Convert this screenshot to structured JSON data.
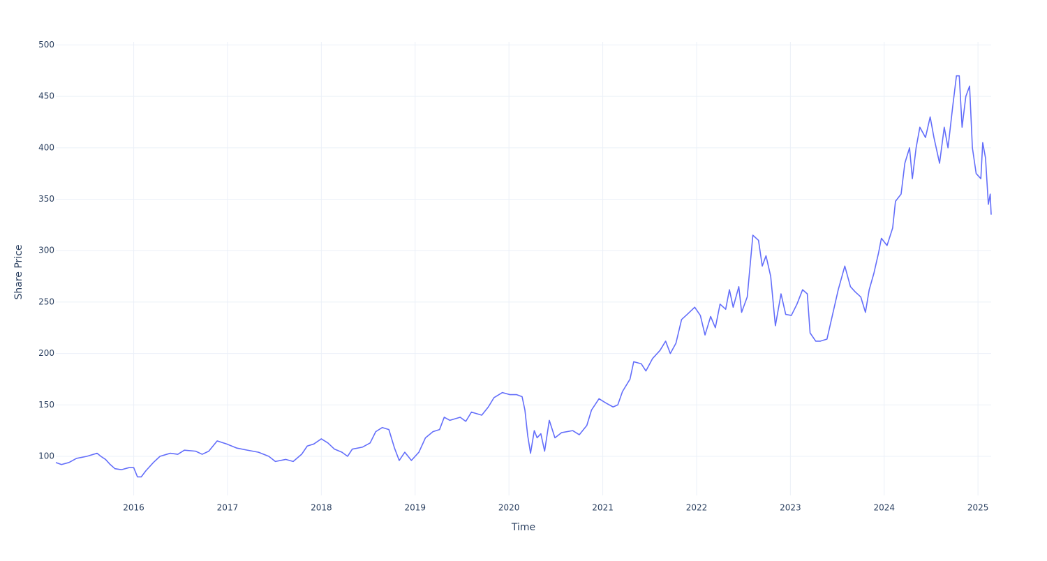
{
  "chart_data": {
    "type": "line",
    "x_label": "Time",
    "y_label": "Share Price",
    "color": "#636efa",
    "grid": true,
    "xlim": [
      2015.17,
      2025.14
    ],
    "xticks": [
      2016,
      2017,
      2018,
      2019,
      2020,
      2021,
      2022,
      2023,
      2024,
      2025
    ],
    "ylim": [
      62,
      503
    ],
    "yticks": [
      100,
      150,
      200,
      250,
      300,
      350,
      400,
      450,
      500
    ],
    "x": [
      2015.17,
      2015.23,
      2015.31,
      2015.39,
      2015.5,
      2015.61,
      2015.65,
      2015.7,
      2015.75,
      2015.8,
      2015.87,
      2015.95,
      2016.0,
      2016.04,
      2016.08,
      2016.13,
      2016.21,
      2016.28,
      2016.39,
      2016.47,
      2016.54,
      2016.66,
      2016.73,
      2016.8,
      2016.89,
      2016.99,
      2017.1,
      2017.21,
      2017.33,
      2017.44,
      2017.51,
      2017.62,
      2017.7,
      2017.79,
      2017.85,
      2017.92,
      2018.0,
      2018.07,
      2018.14,
      2018.22,
      2018.28,
      2018.33,
      2018.44,
      2018.52,
      2018.58,
      2018.65,
      2018.72,
      2018.78,
      2018.83,
      2018.89,
      2018.96,
      2019.04,
      2019.11,
      2019.19,
      2019.26,
      2019.31,
      2019.37,
      2019.48,
      2019.54,
      2019.6,
      2019.71,
      2019.78,
      2019.84,
      2019.93,
      2020.01,
      2020.08,
      2020.14,
      2020.17,
      2020.2,
      2020.23,
      2020.27,
      2020.3,
      2020.34,
      2020.38,
      2020.43,
      2020.49,
      2020.56,
      2020.68,
      2020.75,
      2020.83,
      2020.88,
      2020.96,
      2021.03,
      2021.11,
      2021.16,
      2021.21,
      2021.29,
      2021.33,
      2021.41,
      2021.46,
      2021.53,
      2021.61,
      2021.67,
      2021.72,
      2021.78,
      2021.84,
      2021.9,
      2021.98,
      2022.04,
      2022.09,
      2022.15,
      2022.2,
      2022.25,
      2022.31,
      2022.35,
      2022.39,
      2022.45,
      2022.48,
      2022.54,
      2022.6,
      2022.66,
      2022.7,
      2022.74,
      2022.79,
      2022.84,
      2022.9,
      2022.95,
      2023.01,
      2023.07,
      2023.13,
      2023.18,
      2023.21,
      2023.27,
      2023.32,
      2023.39,
      2023.45,
      2023.51,
      2023.58,
      2023.64,
      2023.69,
      2023.75,
      2023.8,
      2023.84,
      2023.89,
      2023.94,
      2023.97,
      2024.03,
      2024.09,
      2024.12,
      2024.18,
      2024.22,
      2024.27,
      2024.3,
      2024.34,
      2024.38,
      2024.44,
      2024.49,
      2024.53,
      2024.59,
      2024.64,
      2024.68,
      2024.73,
      2024.77,
      2024.8,
      2024.83,
      2024.87,
      2024.91,
      2024.94,
      2024.98,
      2025.03,
      2025.05,
      2025.08,
      2025.11,
      2025.13,
      2025.14
    ],
    "values": [
      94,
      92,
      94,
      98,
      100,
      103,
      100,
      97,
      92,
      88,
      87,
      89,
      89,
      80,
      80,
      86,
      94,
      100,
      103,
      102,
      106,
      105,
      102,
      105,
      115,
      112,
      108,
      106,
      104,
      100,
      95,
      97,
      95,
      102,
      110,
      112,
      117,
      113,
      107,
      104,
      100,
      107,
      109,
      113,
      124,
      128,
      126,
      108,
      96,
      104,
      96,
      104,
      118,
      124,
      126,
      138,
      135,
      138,
      134,
      143,
      140,
      148,
      157,
      162,
      160,
      160,
      158,
      145,
      120,
      103,
      125,
      118,
      122,
      105,
      135,
      118,
      123,
      125,
      121,
      130,
      145,
      156,
      152,
      148,
      150,
      163,
      175,
      192,
      190,
      183,
      195,
      203,
      212,
      200,
      210,
      233,
      238,
      245,
      237,
      218,
      236,
      225,
      248,
      243,
      262,
      245,
      265,
      240,
      255,
      315,
      310,
      285,
      295,
      275,
      227,
      258,
      238,
      237,
      248,
      262,
      258,
      220,
      212,
      212,
      214,
      238,
      262,
      285,
      265,
      260,
      255,
      240,
      262,
      278,
      298,
      312,
      305,
      322,
      348,
      355,
      385,
      400,
      370,
      400,
      420,
      410,
      430,
      410,
      385,
      420,
      400,
      440,
      470,
      470,
      420,
      450,
      460,
      400,
      375,
      370,
      405,
      390,
      345,
      355,
      335
    ]
  }
}
